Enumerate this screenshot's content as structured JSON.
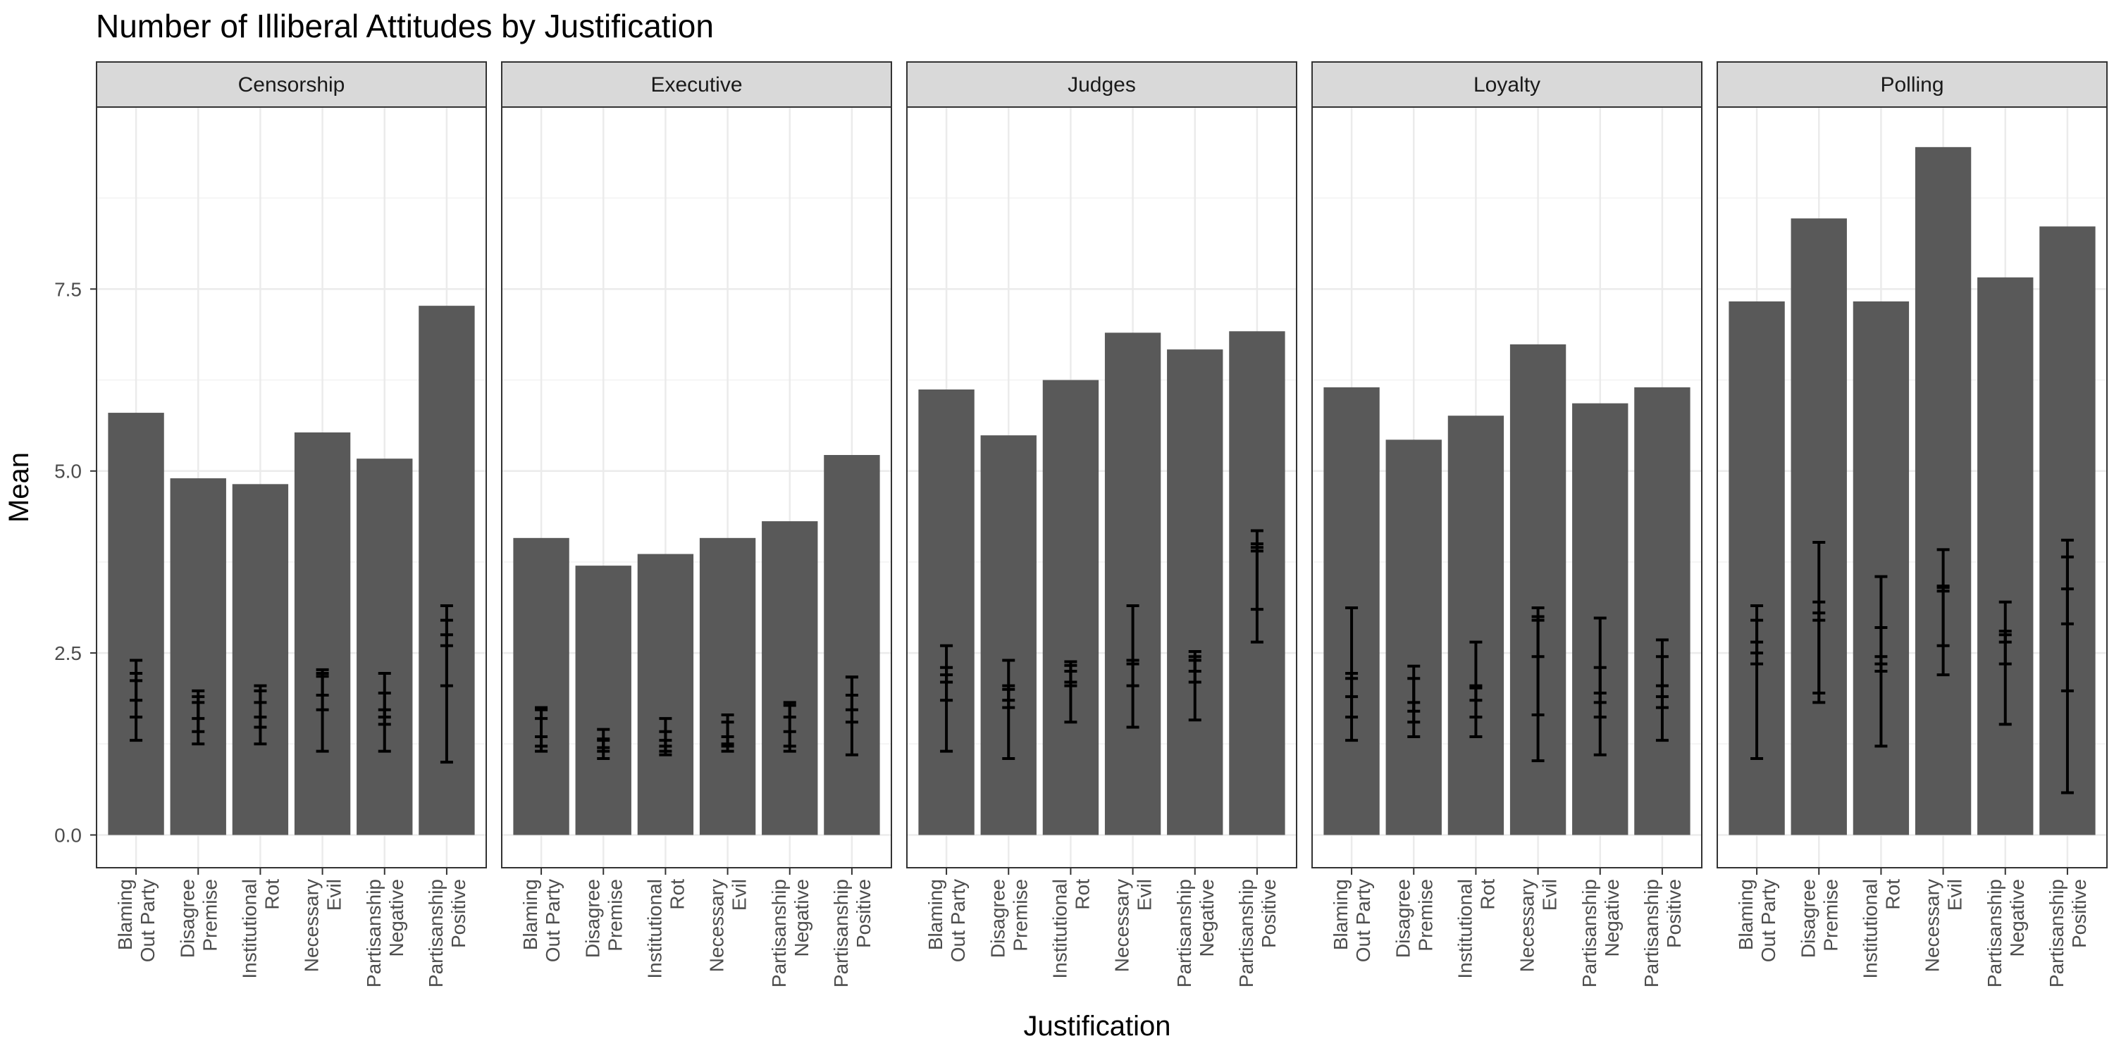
{
  "chart_data": {
    "type": "bar",
    "title": "Number of Illiberal Attitudes by Justification",
    "xlabel": "Justification",
    "ylabel": "Mean",
    "ylim": [
      -0.45,
      10.0
    ],
    "yticks": [
      0.0,
      2.5,
      5.0,
      7.5
    ],
    "ytick_labels": [
      "0.0",
      "2.5",
      "5.0",
      "7.5"
    ],
    "grid": true,
    "legend": "none",
    "bar_color": "#595959",
    "categories": [
      [
        "Blaming",
        "Out Party"
      ],
      [
        "Disagree",
        "Premise"
      ],
      [
        "Institutional",
        "Rot"
      ],
      [
        "Necessary",
        "Evil"
      ],
      [
        "Partisanship",
        "Negative"
      ],
      [
        "Partisanship",
        "Positive"
      ]
    ],
    "panels": [
      {
        "name": "Censorship",
        "values": [
          5.8,
          4.9,
          4.82,
          5.53,
          5.17,
          7.27
        ],
        "error_bars": [
          [
            [
              1.3,
              2.4
            ],
            [
              1.62,
              2.22
            ],
            [
              1.85,
              2.12
            ]
          ],
          [
            [
              1.25,
              1.98
            ],
            [
              1.42,
              1.82
            ],
            [
              1.6,
              1.9
            ]
          ],
          [
            [
              1.25,
              2.05
            ],
            [
              1.48,
              1.62
            ],
            [
              1.82,
              1.98
            ]
          ],
          [
            [
              1.15,
              2.27
            ],
            [
              1.72,
              2.18
            ],
            [
              1.92,
              2.22
            ]
          ],
          [
            [
              1.15,
              2.22
            ],
            [
              1.52,
              1.72
            ],
            [
              1.62,
              1.95
            ]
          ],
          [
            [
              1.0,
              3.15
            ],
            [
              2.05,
              2.75
            ],
            [
              2.6,
              2.95
            ]
          ]
        ]
      },
      {
        "name": "Executive",
        "values": [
          4.08,
          3.7,
          3.86,
          4.08,
          4.31,
          5.22
        ],
        "error_bars": [
          [
            [
              1.15,
              1.35
            ],
            [
              1.22,
              1.72
            ],
            [
              1.6,
              1.75
            ]
          ],
          [
            [
              1.05,
              1.45
            ],
            [
              1.15,
              1.32
            ],
            [
              1.2,
              1.3
            ]
          ],
          [
            [
              1.1,
              1.6
            ],
            [
              1.15,
              1.3
            ],
            [
              1.22,
              1.42
            ]
          ],
          [
            [
              1.15,
              1.65
            ],
            [
              1.22,
              1.35
            ],
            [
              1.25,
              1.55
            ]
          ],
          [
            [
              1.15,
              1.82
            ],
            [
              1.22,
              1.42
            ],
            [
              1.62,
              1.78
            ]
          ],
          [
            [
              1.1,
              2.17
            ],
            [
              1.55,
              1.92
            ],
            [
              1.72,
              2.17
            ]
          ]
        ]
      },
      {
        "name": "Judges",
        "values": [
          6.12,
          5.49,
          6.25,
          6.9,
          6.67,
          6.92
        ],
        "error_bars": [
          [
            [
              1.15,
              2.6
            ],
            [
              1.85,
              2.3
            ],
            [
              2.1,
              2.2
            ]
          ],
          [
            [
              1.05,
              2.4
            ],
            [
              1.75,
              2.05
            ],
            [
              1.85,
              2.0
            ]
          ],
          [
            [
              1.55,
              2.38
            ],
            [
              2.05,
              2.33
            ],
            [
              2.1,
              2.25
            ]
          ],
          [
            [
              1.48,
              3.15
            ],
            [
              2.05,
              2.4
            ],
            [
              2.35,
              2.4
            ]
          ],
          [
            [
              1.58,
              2.52
            ],
            [
              2.1,
              2.45
            ],
            [
              2.25,
              2.4
            ]
          ],
          [
            [
              2.65,
              4.18
            ],
            [
              3.1,
              3.95
            ],
            [
              3.9,
              4.0
            ]
          ]
        ]
      },
      {
        "name": "Loyalty",
        "values": [
          6.15,
          5.43,
          5.76,
          6.74,
          5.93,
          6.15
        ],
        "error_bars": [
          [
            [
              1.3,
              3.12
            ],
            [
              1.62,
              2.22
            ],
            [
              1.9,
              2.15
            ]
          ],
          [
            [
              1.35,
              2.32
            ],
            [
              1.55,
              2.15
            ],
            [
              1.7,
              1.82
            ]
          ],
          [
            [
              1.35,
              2.65
            ],
            [
              1.62,
              2.02
            ],
            [
              1.85,
              2.05
            ]
          ],
          [
            [
              1.02,
              3.12
            ],
            [
              1.65,
              3.0
            ],
            [
              2.45,
              2.95
            ]
          ],
          [
            [
              1.1,
              2.98
            ],
            [
              1.62,
              1.95
            ],
            [
              1.82,
              2.3
            ]
          ],
          [
            [
              1.3,
              2.68
            ],
            [
              1.75,
              2.05
            ],
            [
              1.9,
              2.45
            ]
          ]
        ]
      },
      {
        "name": "Polling",
        "values": [
          7.33,
          8.47,
          7.33,
          9.45,
          7.66,
          8.36
        ],
        "error_bars": [
          [
            [
              1.05,
              3.15
            ],
            [
              2.35,
              2.95
            ],
            [
              2.5,
              2.65
            ]
          ],
          [
            [
              1.82,
              4.02
            ],
            [
              1.95,
              3.2
            ],
            [
              2.95,
              3.05
            ]
          ],
          [
            [
              1.22,
              3.55
            ],
            [
              2.25,
              2.85
            ],
            [
              2.35,
              2.45
            ]
          ],
          [
            [
              2.2,
              3.92
            ],
            [
              2.6,
              3.4
            ],
            [
              3.35,
              3.42
            ]
          ],
          [
            [
              1.52,
              3.2
            ],
            [
              2.35,
              2.75
            ],
            [
              2.65,
              2.8
            ]
          ],
          [
            [
              0.58,
              4.05
            ],
            [
              1.98,
              3.82
            ],
            [
              2.9,
              3.38
            ]
          ]
        ]
      }
    ]
  }
}
